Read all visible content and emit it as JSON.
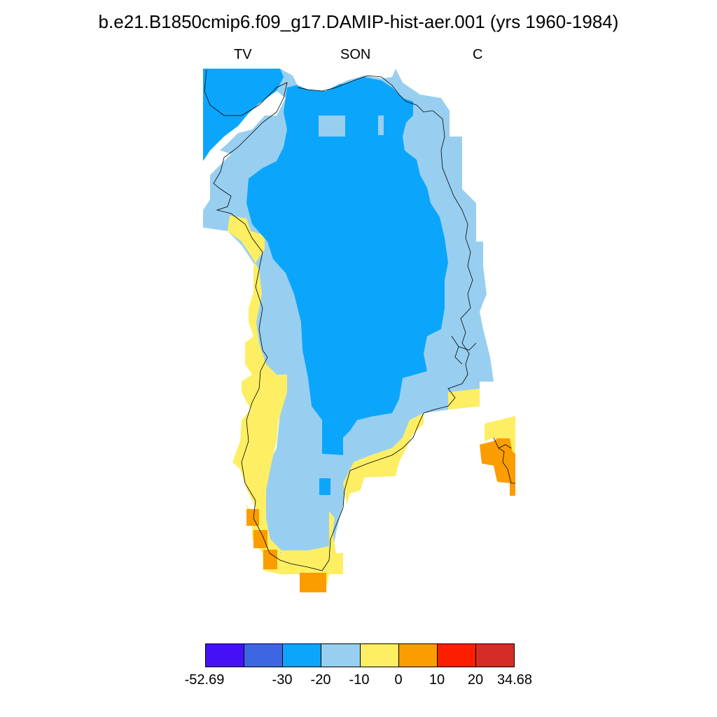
{
  "title": "b.e21.B1850cmip6.f09_g17.DAMIP-hist-aer.001 (yrs 1960-1984)",
  "subtitle_left": "TV",
  "subtitle_center": "SON",
  "subtitle_right": "C",
  "colorbar": {
    "colors": [
      "#4411f6",
      "#3d66e2",
      "#0ba6fb",
      "#98cff0",
      "#fdee64",
      "#fb9d00",
      "#fb1f00",
      "#d62c27"
    ],
    "labels": [
      "-52.69",
      "-30",
      "-20",
      "-10",
      "0",
      "10",
      "20",
      "34.68"
    ]
  }
}
